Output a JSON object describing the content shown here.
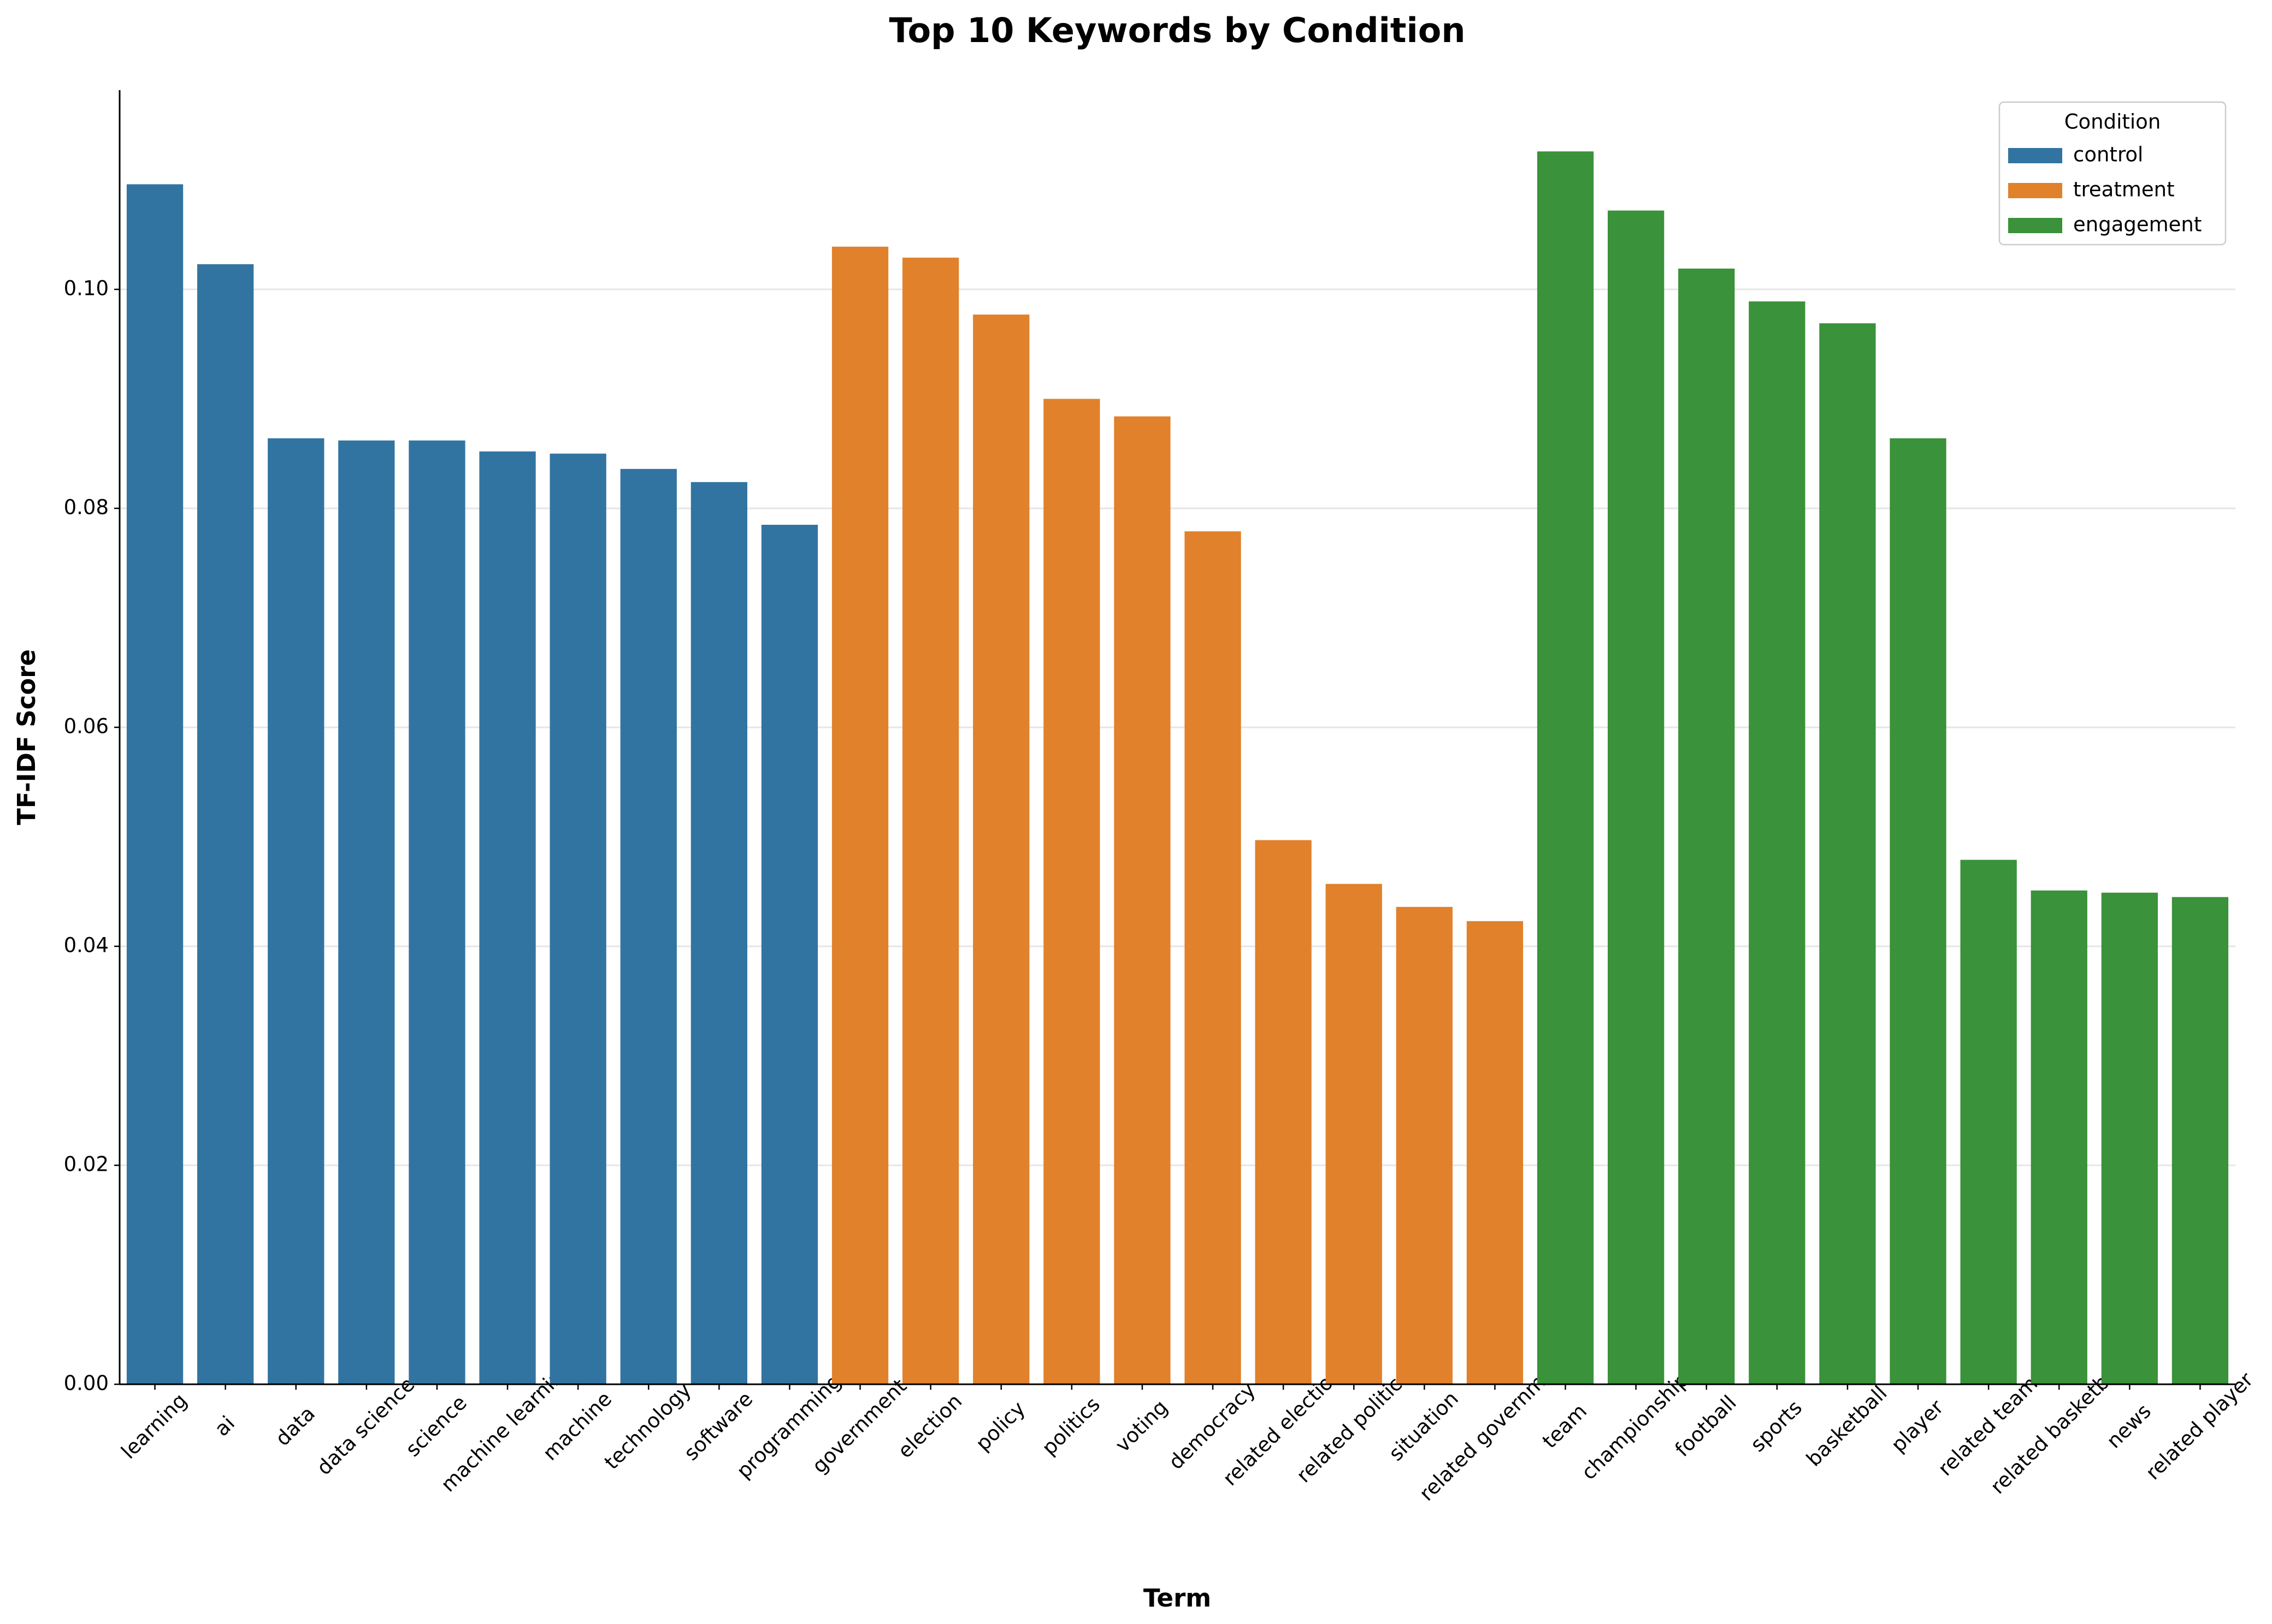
{
  "chart_data": {
    "type": "bar",
    "title": "Top 10 Keywords by Condition",
    "xlabel": "Term",
    "ylabel": "TF-IDF Score",
    "categories": [
      "learning",
      "ai",
      "data",
      "data science",
      "science",
      "machine learning",
      "machine",
      "technology",
      "software",
      "programming",
      "government",
      "election",
      "policy",
      "politics",
      "voting",
      "democracy",
      "related election",
      "related politics",
      "situation",
      "related government",
      "team",
      "championship",
      "football",
      "sports",
      "basketball",
      "player",
      "related team",
      "related basketball",
      "news",
      "related player"
    ],
    "series": [
      {
        "name": "control",
        "color": "#3274a1",
        "values": [
          0.1096,
          0.1023,
          0.0864,
          0.0862,
          0.0862,
          0.0852,
          0.085,
          0.0836,
          0.0824,
          0.0785,
          null,
          null,
          null,
          null,
          null,
          null,
          null,
          null,
          null,
          null,
          null,
          null,
          null,
          null,
          null,
          null,
          null,
          null,
          null,
          null
        ]
      },
      {
        "name": "treatment",
        "color": "#e1812c",
        "values": [
          null,
          null,
          null,
          null,
          null,
          null,
          null,
          null,
          null,
          null,
          0.1039,
          0.1029,
          0.0977,
          0.09,
          0.0884,
          0.0779,
          0.0497,
          0.0457,
          0.0436,
          0.0423,
          null,
          null,
          null,
          null,
          null,
          null,
          null,
          null,
          null,
          null
        ]
      },
      {
        "name": "engagement",
        "color": "#3a923a",
        "values": [
          null,
          null,
          null,
          null,
          null,
          null,
          null,
          null,
          null,
          null,
          null,
          null,
          null,
          null,
          null,
          null,
          null,
          null,
          null,
          null,
          0.1126,
          0.1072,
          0.1019,
          0.0989,
          0.0969,
          0.0864,
          0.0479,
          0.0451,
          0.0449,
          0.0445
        ]
      }
    ],
    "legend_title": "Condition",
    "legend": "upper right",
    "ylim": [
      0,
      0.1182
    ],
    "yticks": [
      {
        "value": 0,
        "label": "0.00"
      },
      {
        "value": 0.02,
        "label": "0.02"
      },
      {
        "value": 0.04,
        "label": "0.04"
      },
      {
        "value": 0.06,
        "label": "0.06"
      },
      {
        "value": 0.08,
        "label": "0.08"
      },
      {
        "value": 0.1,
        "label": "0.10"
      }
    ],
    "grid": true
  }
}
